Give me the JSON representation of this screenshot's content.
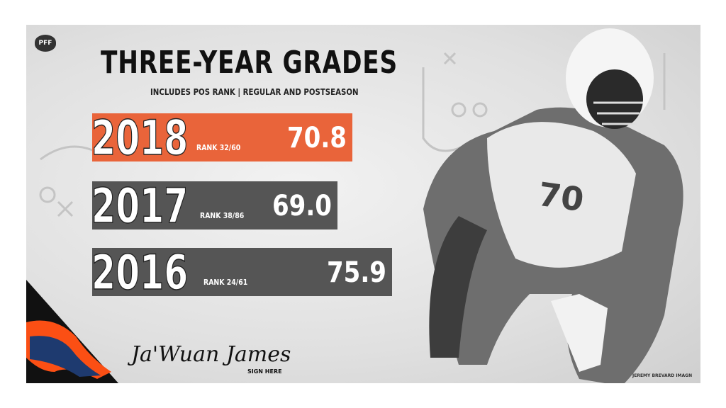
{
  "brand": "PFF",
  "header": {
    "title": "THREE-YEAR GRADES",
    "subtitle": "INCLUDES POS RANK | REGULAR AND POSTSEASON"
  },
  "grades": [
    {
      "year": "2018",
      "rank": "RANK 32/60",
      "grade": "70.8"
    },
    {
      "year": "2017",
      "rank": "RANK 38/86",
      "grade": "69.0"
    },
    {
      "year": "2016",
      "rank": "RANK 24/61",
      "grade": "75.9"
    }
  ],
  "player": {
    "signature": "Ja'Wuan James",
    "caption": "SIGN HERE"
  },
  "credit": "JEREMY BREVARD IMAGN"
}
